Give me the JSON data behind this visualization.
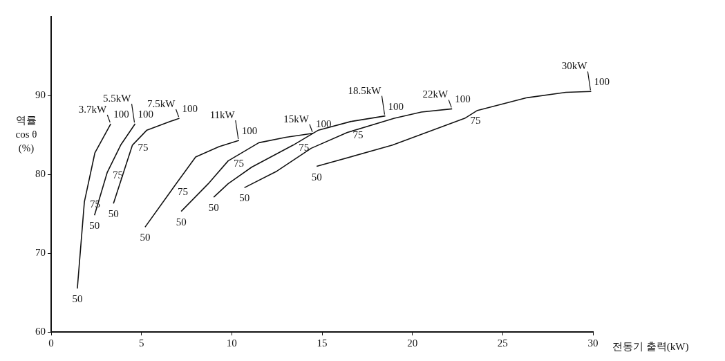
{
  "chart_data": {
    "type": "line",
    "xlabel": "전동기 출력(kW)",
    "ylabel": "역률 cos θ (%)",
    "xlim": [
      0,
      30
    ],
    "xticks": [
      0,
      5,
      10,
      15,
      20,
      25,
      30
    ],
    "ylim": [
      60,
      100
    ],
    "yticks": [
      60,
      70,
      80,
      90
    ],
    "grid": false,
    "series": [
      {
        "name": "3.7kW",
        "color": "#111111",
        "x": [
          1.45,
          1.84,
          2.42,
          3.3
        ],
        "values": [
          65.5,
          76.5,
          82.7,
          86.4
        ]
      },
      {
        "name": "5.5kW",
        "color": "#111111",
        "x": [
          2.4,
          3.1,
          3.85,
          4.65
        ],
        "values": [
          74.8,
          80.2,
          83.7,
          86.4
        ]
      },
      {
        "name": "7.5kW",
        "color": "#111111",
        "x": [
          3.45,
          4.5,
          5.3,
          6.6,
          7.1
        ],
        "values": [
          76.3,
          83.7,
          85.6,
          86.7,
          87.1
        ]
      },
      {
        "name": "11kW",
        "color": "#111111",
        "x": [
          5.2,
          6.7,
          8.0,
          9.3,
          10.4
        ],
        "values": [
          73.3,
          78.1,
          82.2,
          83.5,
          84.3
        ]
      },
      {
        "name": "15kW",
        "color": "#111111",
        "x": [
          7.2,
          8.7,
          9.8,
          11.5,
          13.0,
          14.5
        ],
        "values": [
          75.3,
          78.8,
          81.7,
          84.0,
          84.7,
          85.2
        ]
      },
      {
        "name": "18.5kW",
        "color": "#111111",
        "x": [
          9.0,
          9.8,
          11.1,
          13.4,
          14.8,
          16.6,
          18.5
        ],
        "values": [
          77.1,
          78.8,
          80.9,
          83.7,
          85.6,
          86.7,
          87.4
        ]
      },
      {
        "name": "22kW",
        "color": "#111111",
        "x": [
          10.7,
          12.5,
          14.4,
          16.4,
          19.0,
          20.5,
          22.2
        ],
        "values": [
          78.3,
          80.4,
          83.3,
          85.3,
          87.1,
          87.9,
          88.3
        ]
      },
      {
        "name": "30kW",
        "color": "#111111",
        "x": [
          14.7,
          18.9,
          22.9,
          23.6,
          26.3,
          28.5,
          29.9
        ],
        "values": [
          81.0,
          83.7,
          87.1,
          88.1,
          89.7,
          90.4,
          90.5
        ]
      }
    ],
    "annotations": [
      {
        "text": "50",
        "x": 1.45,
        "y": 65.5
      },
      {
        "text": "75",
        "x": 1.84,
        "y": 76.5
      },
      {
        "text": "100",
        "x": 3.3,
        "y": 86.4
      },
      {
        "text": "50",
        "x": 2.4,
        "y": 74.8
      },
      {
        "text": "75",
        "x": 3.1,
        "y": 80.2
      },
      {
        "text": "100",
        "x": 4.65,
        "y": 86.4
      },
      {
        "text": "50",
        "x": 3.45,
        "y": 76.3
      },
      {
        "text": "75",
        "x": 4.5,
        "y": 83.7
      },
      {
        "text": "100",
        "x": 7.1,
        "y": 87.1
      },
      {
        "text": "50",
        "x": 5.2,
        "y": 73.3
      },
      {
        "text": "75",
        "x": 6.7,
        "y": 78.1
      },
      {
        "text": "100",
        "x": 10.4,
        "y": 84.3
      },
      {
        "text": "50",
        "x": 7.2,
        "y": 75.3
      },
      {
        "text": "75",
        "x": 9.8,
        "y": 81.7
      },
      {
        "text": "100",
        "x": 14.5,
        "y": 85.2
      },
      {
        "text": "50",
        "x": 9.0,
        "y": 77.1
      },
      {
        "text": "75",
        "x": 13.4,
        "y": 83.7
      },
      {
        "text": "100",
        "x": 18.5,
        "y": 87.4
      },
      {
        "text": "50",
        "x": 10.7,
        "y": 78.3
      },
      {
        "text": "75",
        "x": 16.4,
        "y": 85.3
      },
      {
        "text": "100",
        "x": 22.2,
        "y": 88.3
      },
      {
        "text": "50",
        "x": 14.7,
        "y": 81.0
      },
      {
        "text": "75",
        "x": 22.9,
        "y": 87.1
      },
      {
        "text": "100",
        "x": 29.9,
        "y": 90.5
      }
    ]
  }
}
